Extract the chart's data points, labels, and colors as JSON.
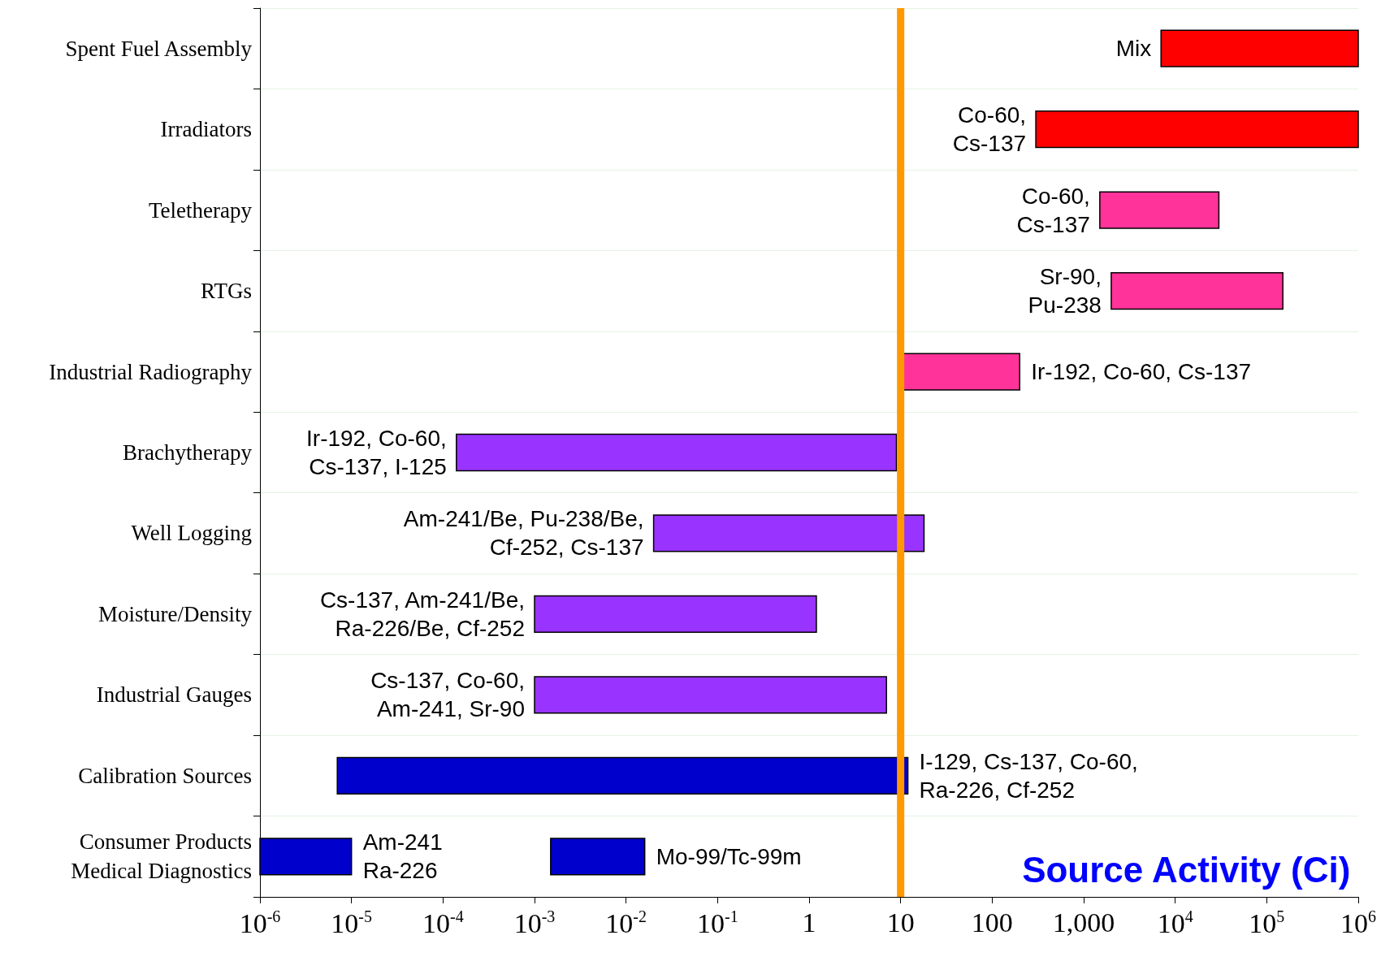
{
  "chart_data": {
    "type": "bar",
    "orientation": "horizontal",
    "log": "x",
    "grid": "y",
    "xlabel": "Source Activity (Ci)",
    "categories": [
      "Spent Fuel Assembly",
      "Irradiators",
      "Teletherapy",
      "RTGs",
      "Industrial Radiography",
      "Brachytherapy",
      "Well Logging",
      "Moisture/Density",
      "Industrial Gauges",
      "Calibration Sources",
      "Consumer Products\nMedical Diagnostics"
    ],
    "series": [
      {
        "base": [
          7000,
          300,
          1500,
          2000,
          10,
          0.00014,
          0.02,
          0.001,
          0.001,
          7e-06,
          1e-06
        ],
        "values": [
          993000,
          999700,
          28500,
          148000,
          190,
          9,
          18,
          1.2,
          7,
          12,
          9e-06
        ],
        "colors": [
          "#ff0000",
          "#ff0000",
          "#ff3399",
          "#ff3399",
          "#ff3399",
          "#9933ff",
          "#9933ff",
          "#9933ff",
          "#9933ff",
          "#0000cc",
          "#0000cc"
        ]
      },
      {
        "base": [
          null,
          null,
          null,
          null,
          null,
          null,
          null,
          null,
          null,
          null,
          0.0015
        ],
        "values": [
          null,
          null,
          null,
          null,
          null,
          null,
          null,
          null,
          null,
          null,
          0.0145
        ],
        "colors": [
          null,
          null,
          null,
          null,
          null,
          null,
          null,
          null,
          null,
          null,
          "#0000cc"
        ]
      }
    ],
    "xlim": [
      1e-06,
      1000000
    ],
    "xticks": [
      {
        "value": 1e-06,
        "label": "10$^{-6}$"
      },
      {
        "value": 1e-05,
        "label": "10$^{-5}$"
      },
      {
        "value": 0.0001,
        "label": "10$^{-4}$"
      },
      {
        "value": 0.001,
        "label": "10$^{-3}$"
      },
      {
        "value": 0.01,
        "label": "10$^{-2}$"
      },
      {
        "value": 0.1,
        "label": "10$^{-1}$"
      },
      1,
      10,
      100,
      {
        "value": 1000,
        "label": "1,000"
      },
      {
        "value": 10000,
        "label": "10$^{4}$"
      },
      {
        "value": 100000,
        "label": "10$^{5}$"
      },
      {
        "value": 1000000,
        "label": "10$^{6}$"
      }
    ],
    "ref_lines": [
      {
        "axis": "x",
        "value": 10,
        "color": "#ff9900"
      }
    ],
    "annotations": [
      {
        "text": "Mix",
        "x": 7000,
        "y": "Spent Fuel Assembly"
      },
      {
        "text": "Co-60,\nCs-137",
        "x": 300,
        "y": "Irradiators"
      },
      {
        "text": "Co-60,\nCs-137",
        "x": 1500,
        "y": "Teletherapy"
      },
      {
        "text": "Sr-90,\nPu-238",
        "x": 2000,
        "y": "RTGs"
      },
      {
        "text": "Ir-192, Co-60, Cs-137",
        "x": 200,
        "y": "Industrial Radiography"
      },
      {
        "text": "Ir-192, Co-60,\nCs-137, I-125",
        "x": 0.00014,
        "y": "Brachytherapy"
      },
      {
        "text": "Am-241/Be, Pu-238/Be,\nCf-252, Cs-137",
        "x": 0.02,
        "y": "Well Logging"
      },
      {
        "text": "Cs-137, Am-241/Be,\nRa-226/Be, Cf-252",
        "x": 0.001,
        "y": "Moisture/Density"
      },
      {
        "text": "Cs-137, Co-60,\nAm-241, Sr-90",
        "x": 0.001,
        "y": "Industrial Gauges"
      },
      {
        "text": "I-129, Cs-137, Co-60,\nRa-226, Cf-252",
        "x": 12.000007,
        "y": "Calibration Sources"
      },
      {
        "text": "Am-241\nRa-226",
        "x": 1e-05,
        "y": "Consumer Products\nMedical Diagnostics"
      },
      {
        "text": "Mo-99/Tc-99m",
        "x": 0.016,
        "y": "Consumer Products\nMedical Diagnostics"
      }
    ]
  }
}
